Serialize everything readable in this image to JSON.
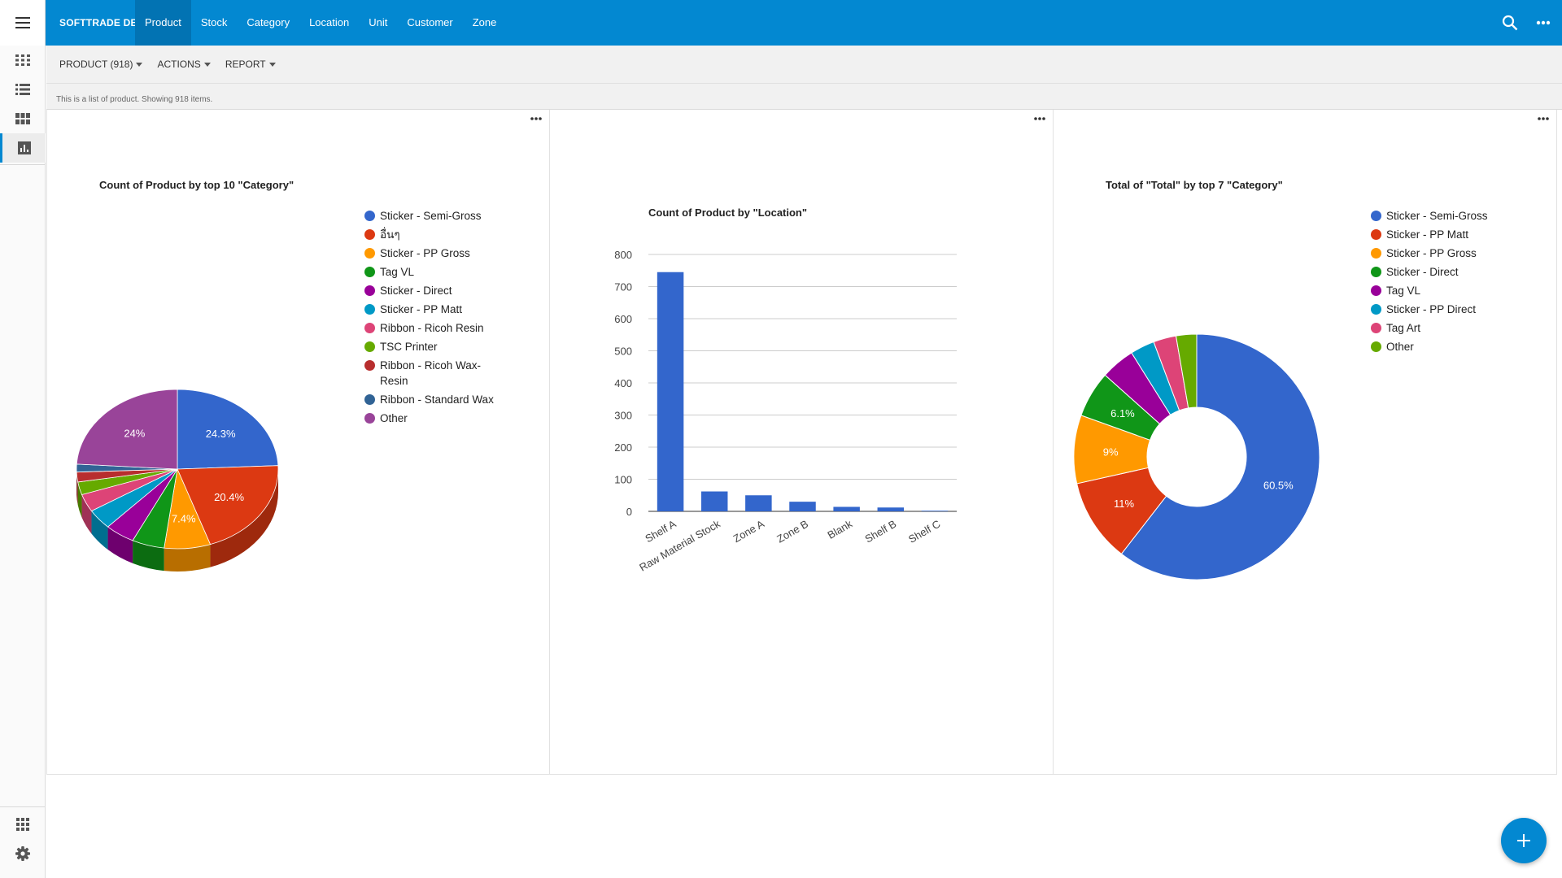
{
  "app": {
    "brand": "SOFTTRADE DB",
    "nav": [
      {
        "label": "Product",
        "active": true
      },
      {
        "label": "Stock"
      },
      {
        "label": "Category"
      },
      {
        "label": "Location"
      },
      {
        "label": "Unit"
      },
      {
        "label": "Customer"
      },
      {
        "label": "Zone"
      }
    ],
    "icons": {
      "menu": "hamburger-icon",
      "search": "search-icon",
      "more": "more-horizontal-icon"
    }
  },
  "rail": {
    "items": [
      "grid-view-icon",
      "list-view-icon",
      "tile-view-icon",
      "chart-view-icon"
    ],
    "active": "chart-view-icon",
    "bottom": [
      "apps-icon",
      "settings-icon"
    ]
  },
  "toolbar": {
    "product_label": "PRODUCT (918)",
    "actions_label": "ACTIONS",
    "report_label": "REPORT"
  },
  "info_text": "This is a list of product. Showing 918 items.",
  "colors": {
    "accent": "#0388d1",
    "active_nav": "#0273b3"
  },
  "chart_data": [
    {
      "type": "pie",
      "title": "Count of Product by top 10 \"Category\"",
      "style": "3d",
      "categories": [
        "Sticker - Semi-Gross",
        "อื่นๆ",
        "Sticker - PP Gross",
        "Tag VL",
        "Sticker - Direct",
        "Sticker - PP Matt",
        "Ribbon - Ricoh Resin",
        "TSC Printer",
        "Ribbon - Ricoh Wax-Resin",
        "Ribbon - Standard Wax",
        "Other"
      ],
      "values": [
        24.3,
        20.4,
        7.4,
        5.2,
        4.8,
        4.1,
        3.6,
        2.6,
        2.0,
        1.6,
        24.0
      ],
      "data_labels": [
        "24.3%",
        "20.4%",
        "7.4%",
        "",
        "",
        "",
        "",
        "",
        "",
        "",
        "24%"
      ],
      "colors": [
        "#3366cc",
        "#dc3912",
        "#ff9900",
        "#109618",
        "#990099",
        "#0099c6",
        "#dd4477",
        "#66aa00",
        "#b82e2e",
        "#316395",
        "#994499"
      ],
      "legend_position": "right"
    },
    {
      "type": "bar",
      "title": "Count of Product by \"Location\"",
      "categories": [
        "Shelf A",
        "Raw Material Stock",
        "Zone A",
        "Zone B",
        "Blank",
        "Shelf B",
        "Shelf C"
      ],
      "values": [
        745,
        62,
        50,
        30,
        14,
        12,
        2
      ],
      "ylim": [
        0,
        800
      ],
      "yticks": [
        0,
        100,
        200,
        300,
        400,
        500,
        600,
        700,
        800
      ],
      "grid": true,
      "color": "#3366cc"
    },
    {
      "type": "pie",
      "style": "donut",
      "title": "Total of \"Total\" by top 7 \"Category\"",
      "categories": [
        "Sticker - Semi-Gross",
        "Sticker - PP Matt",
        "Sticker - PP Gross",
        "Sticker - Direct",
        "Tag VL",
        "Sticker - PP Direct",
        "Tag Art",
        "Other"
      ],
      "values": [
        60.5,
        11.0,
        9.0,
        6.1,
        4.5,
        3.2,
        3.0,
        2.7
      ],
      "data_labels": [
        "60.5%",
        "11%",
        "9%",
        "6.1%",
        "",
        "",
        "",
        ""
      ],
      "colors": [
        "#3366cc",
        "#dc3912",
        "#ff9900",
        "#109618",
        "#990099",
        "#0099c6",
        "#dd4477",
        "#66aa00"
      ],
      "legend_position": "right"
    }
  ]
}
